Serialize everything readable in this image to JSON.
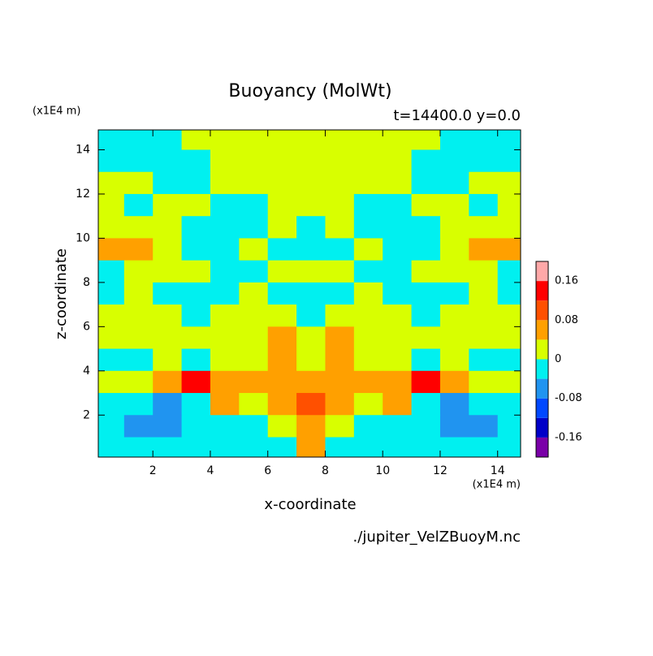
{
  "chart_data": {
    "type": "contour",
    "title": "Buoyancy (MolWt)",
    "subtitle": "t=14400.0 y=0.0",
    "x_unit": "(x1E4 m)",
    "y_unit": "(x1E4 m)",
    "xlabel": "x-coordinate",
    "ylabel": "z-coordinate",
    "source": "./jupiter_VelZBuoyM.nc",
    "xlim": [
      0.1,
      14.8
    ],
    "ylim": [
      0.1,
      14.9
    ],
    "xticks": [
      2,
      4,
      6,
      8,
      10,
      12,
      14
    ],
    "yticks": [
      2,
      4,
      6,
      8,
      10,
      12,
      14
    ],
    "x": [
      0.5,
      1.5,
      2.5,
      3.5,
      4.5,
      5.5,
      6.5,
      7.5,
      8.5,
      9.5,
      10.5,
      11.5,
      12.5,
      13.5,
      14.5
    ],
    "y": [
      14.5,
      13.5,
      12.5,
      11.5,
      10.5,
      9.5,
      8.5,
      7.5,
      6.5,
      5.5,
      4.5,
      3.5,
      2.5,
      1.5,
      0.5
    ],
    "values": [
      [
        -0.02,
        -0.02,
        -0.02,
        0.02,
        0.02,
        0.02,
        0.02,
        0.02,
        0.02,
        0.02,
        0.02,
        0.02,
        -0.02,
        -0.02,
        -0.02
      ],
      [
        -0.02,
        -0.02,
        -0.02,
        -0.02,
        0.02,
        0.02,
        0.02,
        0.02,
        0.02,
        0.02,
        0.02,
        -0.02,
        -0.02,
        -0.02,
        -0.02
      ],
      [
        0.02,
        0.02,
        -0.02,
        -0.02,
        0.02,
        0.02,
        0.02,
        0.02,
        0.02,
        0.02,
        0.02,
        -0.02,
        -0.02,
        0.02,
        0.02
      ],
      [
        0.02,
        -0.02,
        0.02,
        0.02,
        -0.02,
        -0.02,
        0.02,
        0.02,
        0.02,
        -0.02,
        -0.02,
        0.02,
        0.02,
        -0.02,
        0.02
      ],
      [
        0.02,
        0.02,
        0.02,
        -0.02,
        -0.02,
        -0.02,
        0.02,
        -0.02,
        0.02,
        -0.02,
        -0.02,
        -0.02,
        0.02,
        0.02,
        0.02
      ],
      [
        0.06,
        0.06,
        0.02,
        -0.02,
        -0.02,
        0.02,
        -0.02,
        -0.02,
        -0.02,
        0.02,
        -0.02,
        -0.02,
        0.02,
        0.06,
        0.06
      ],
      [
        -0.02,
        0.02,
        0.02,
        0.02,
        -0.02,
        -0.02,
        0.02,
        0.02,
        0.02,
        -0.02,
        -0.02,
        0.02,
        0.02,
        0.02,
        -0.02
      ],
      [
        -0.02,
        0.02,
        -0.02,
        -0.02,
        -0.02,
        0.02,
        -0.02,
        -0.02,
        -0.02,
        0.02,
        -0.02,
        -0.02,
        -0.02,
        0.02,
        -0.02
      ],
      [
        0.02,
        0.02,
        0.02,
        -0.02,
        0.02,
        0.02,
        0.02,
        -0.02,
        0.02,
        0.02,
        0.02,
        -0.02,
        0.02,
        0.02,
        0.02
      ],
      [
        0.02,
        0.02,
        0.02,
        0.02,
        0.02,
        0.02,
        0.06,
        0.02,
        0.06,
        0.02,
        0.02,
        0.02,
        0.02,
        0.02,
        0.02
      ],
      [
        -0.02,
        -0.02,
        0.02,
        -0.02,
        0.02,
        0.02,
        0.06,
        0.02,
        0.06,
        0.02,
        0.02,
        -0.02,
        0.02,
        -0.02,
        -0.02
      ],
      [
        0.02,
        0.02,
        0.06,
        0.14,
        0.06,
        0.06,
        0.06,
        0.06,
        0.06,
        0.06,
        0.06,
        0.14,
        0.06,
        0.02,
        0.02
      ],
      [
        -0.02,
        -0.02,
        -0.06,
        -0.02,
        0.06,
        0.02,
        0.06,
        0.1,
        0.06,
        0.02,
        0.06,
        -0.02,
        -0.06,
        -0.02,
        -0.02
      ],
      [
        -0.02,
        -0.06,
        -0.06,
        -0.02,
        -0.02,
        -0.02,
        0.02,
        0.06,
        0.02,
        -0.02,
        -0.02,
        -0.02,
        -0.06,
        -0.06,
        -0.02
      ],
      [
        -0.02,
        -0.02,
        -0.02,
        -0.02,
        -0.02,
        -0.02,
        -0.02,
        0.06,
        -0.02,
        -0.02,
        -0.02,
        -0.02,
        -0.02,
        -0.02,
        -0.02
      ]
    ],
    "levels": [
      -0.2,
      -0.16,
      -0.12,
      -0.08,
      -0.04,
      0,
      0.04,
      0.08,
      0.12,
      0.16,
      0.2
    ],
    "colors": [
      "#7a00a8",
      "#0000c8",
      "#0048ff",
      "#2094f0",
      "#00f0f0",
      "#d8ff00",
      "#ffa000",
      "#ff5000",
      "#ff0000",
      "#ffa8a8"
    ],
    "colorbar_ticks": [
      0.16,
      0.08,
      0,
      -0.08,
      -0.16
    ]
  }
}
